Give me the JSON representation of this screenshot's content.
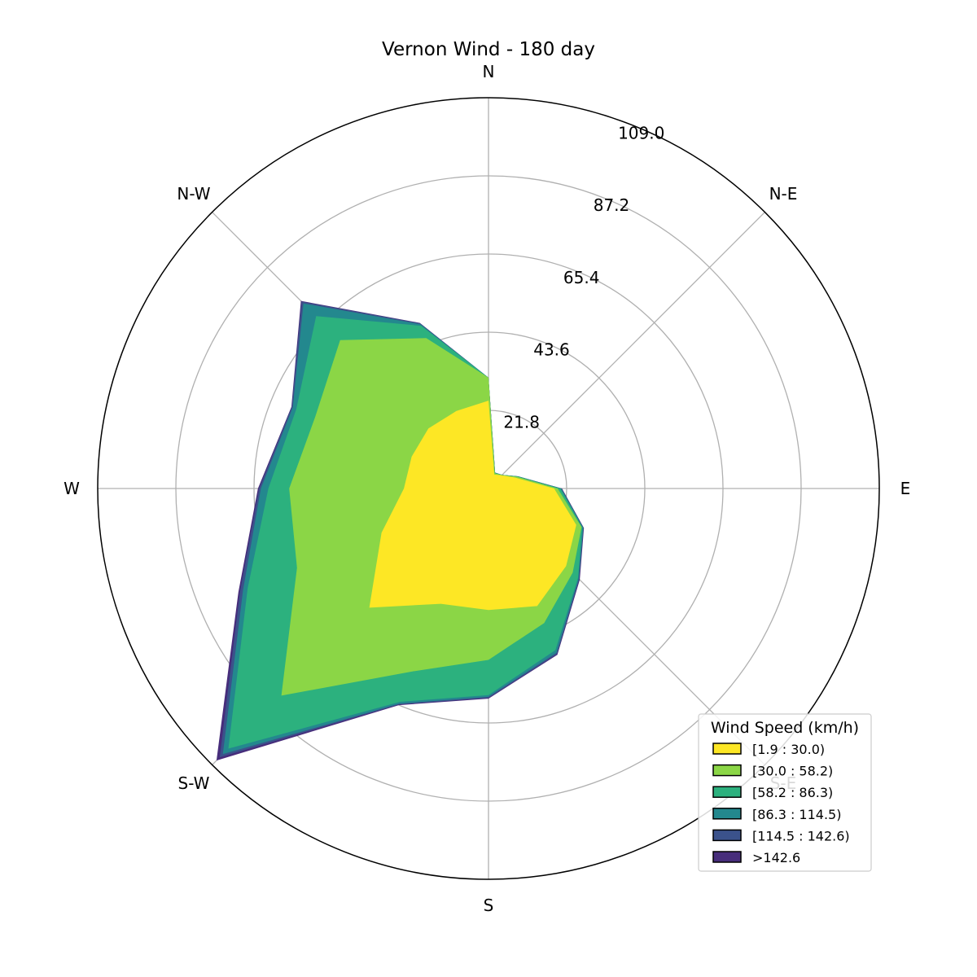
{
  "chart_data": {
    "type": "windrose",
    "title": "Vernon Wind - 180 day",
    "directions": [
      "N",
      "N-E",
      "E",
      "S-E",
      "S",
      "S-W",
      "W",
      "N-W"
    ],
    "direction_angles_deg": [
      0,
      22.5,
      45,
      67.5,
      90,
      112.5,
      135,
      157.5,
      180,
      202.5,
      225,
      247.5,
      270,
      292.5,
      315,
      337.5
    ],
    "radial_ticks": [
      "21.8",
      "43.6",
      "65.4",
      "87.2",
      "109.0"
    ],
    "radial_tick_values": [
      21.8,
      43.6,
      65.4,
      87.2,
      109.0
    ],
    "rmax": 109.0,
    "grid": true,
    "legend": {
      "title": "Wind Speed (km/h)",
      "placement": "lower-right"
    },
    "series": [
      {
        "name": "[1.9 : 30.0)",
        "color": "#fde725",
        "values": [
          24.5,
          4.2,
          5.2,
          8.0,
          18.3,
          26.5,
          30.6,
          35.5,
          33.9,
          34.8,
          47.0,
          32.3,
          23.6,
          23.2,
          23.7,
          23.4
        ]
      },
      {
        "name": "[30.0 : 58.2)",
        "color": "#8bd646",
        "values": [
          30.9,
          4.6,
          5.3,
          8.6,
          19.3,
          28.1,
          33.2,
          40.6,
          47.8,
          55.2,
          81.7,
          57.8,
          55.6,
          52.3,
          58.5,
          45.4
        ]
      },
      {
        "name": "[58.2 : 86.3)",
        "color": "#2cb17e",
        "values": [
          30.9,
          4.7,
          5.4,
          8.8,
          20.0,
          28.3,
          35.3,
          48.8,
          57.6,
          64.4,
          102.6,
          72.7,
          61.4,
          58.0,
          68.0,
          49.1
        ]
      },
      {
        "name": "[86.3 : 114.5)",
        "color": "#23888e",
        "values": [
          30.9,
          4.8,
          5.4,
          8.9,
          20.3,
          28.6,
          35.6,
          49.6,
          58.1,
          65.0,
          104.8,
          74.1,
          63.5,
          59.1,
          73.0,
          49.6
        ]
      },
      {
        "name": "[114.5 : 142.6)",
        "color": "#3b528b",
        "values": [
          30.9,
          4.8,
          5.4,
          8.9,
          20.4,
          28.7,
          35.8,
          50.0,
          58.4,
          65.2,
          106.0,
          75.0,
          64.0,
          59.4,
          73.7,
          49.9
        ]
      },
      {
        "name": ">142.6",
        "color": "#472d7b",
        "values": [
          30.9,
          4.8,
          5.4,
          8.9,
          20.5,
          28.8,
          36.0,
          50.2,
          58.6,
          65.4,
          107.3,
          75.5,
          64.3,
          59.5,
          74.0,
          50.0
        ]
      }
    ]
  }
}
